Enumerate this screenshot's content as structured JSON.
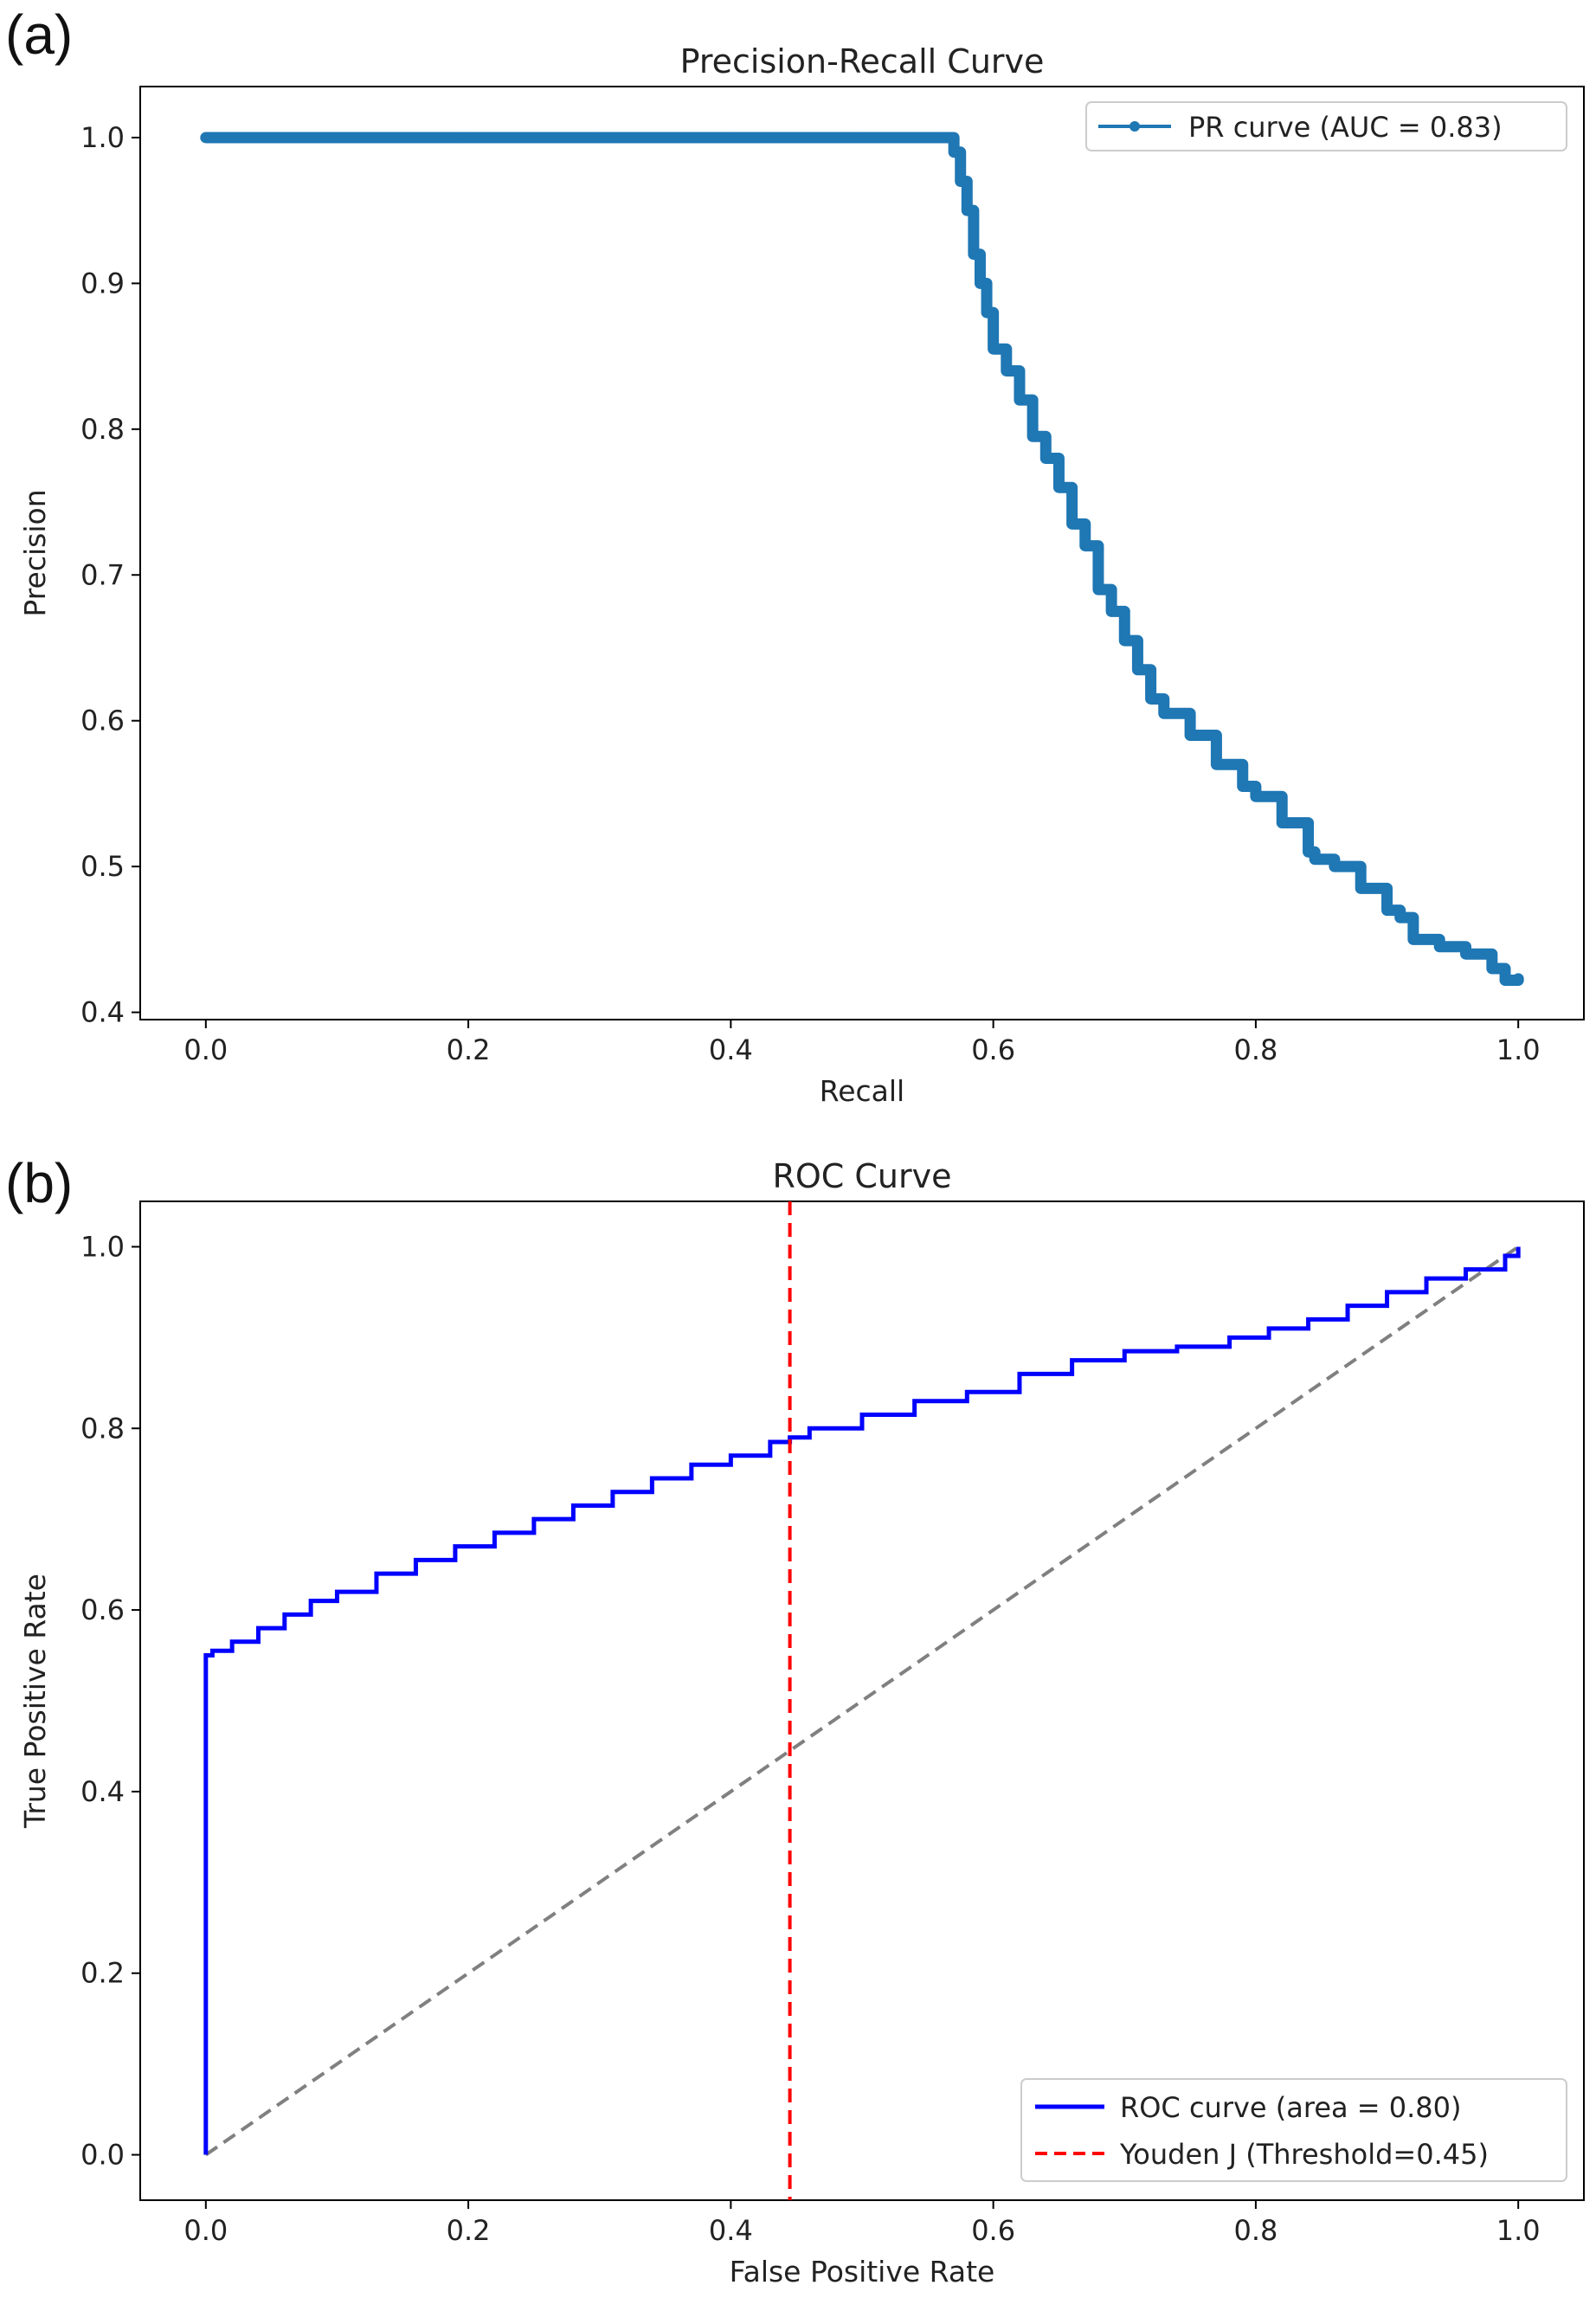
{
  "figure": {
    "panel_a_letter": "(a)",
    "panel_b_letter": "(b)"
  },
  "colors": {
    "pr_line": "#1f77b4",
    "roc_line": "#0000ff",
    "youden_line": "#ff0000",
    "diagonal": "#808080",
    "axes": "#000000"
  },
  "chart_data": [
    {
      "type": "line",
      "title": "Precision-Recall Curve",
      "xlabel": "Recall",
      "ylabel": "Precision",
      "xlim": [
        -0.05,
        1.05
      ],
      "ylim": [
        0.395,
        1.035
      ],
      "xticks": [
        0.0,
        0.2,
        0.4,
        0.6,
        0.8,
        1.0
      ],
      "xtick_labels": [
        "0.0",
        "0.2",
        "0.4",
        "0.6",
        "0.8",
        "1.0"
      ],
      "yticks": [
        0.4,
        0.5,
        0.6,
        0.7,
        0.8,
        0.9,
        1.0
      ],
      "ytick_labels": [
        "0.4",
        "0.5",
        "0.6",
        "0.7",
        "0.8",
        "0.9",
        "1.0"
      ],
      "legend_position": "top-right",
      "series": [
        {
          "name": "PR curve (AUC = 0.83)",
          "marker": "o",
          "x": [
            0.0,
            0.057,
            0.1,
            0.2,
            0.3,
            0.4,
            0.5,
            0.56,
            0.57,
            0.575,
            0.58,
            0.585,
            0.59,
            0.595,
            0.6,
            0.61,
            0.62,
            0.63,
            0.64,
            0.65,
            0.66,
            0.67,
            0.68,
            0.69,
            0.7,
            0.71,
            0.72,
            0.73,
            0.75,
            0.77,
            0.79,
            0.8,
            0.82,
            0.84,
            0.845,
            0.86,
            0.88,
            0.9,
            0.91,
            0.92,
            0.94,
            0.96,
            0.98,
            0.99,
            1.0
          ],
          "y": [
            1.0,
            1.0,
            1.0,
            1.0,
            1.0,
            1.0,
            1.0,
            1.0,
            0.99,
            0.97,
            0.95,
            0.92,
            0.9,
            0.88,
            0.855,
            0.84,
            0.82,
            0.795,
            0.78,
            0.76,
            0.735,
            0.72,
            0.69,
            0.675,
            0.655,
            0.635,
            0.615,
            0.605,
            0.59,
            0.57,
            0.555,
            0.548,
            0.53,
            0.51,
            0.505,
            0.5,
            0.485,
            0.47,
            0.465,
            0.45,
            0.445,
            0.44,
            0.43,
            0.422,
            0.423
          ]
        }
      ]
    },
    {
      "type": "line",
      "title": "ROC Curve",
      "xlabel": "False Positive Rate",
      "ylabel": "True Positive Rate",
      "xlim": [
        -0.05,
        1.05
      ],
      "ylim": [
        -0.05,
        1.05
      ],
      "xticks": [
        0.0,
        0.2,
        0.4,
        0.6,
        0.8,
        1.0
      ],
      "xtick_labels": [
        "0.0",
        "0.2",
        "0.4",
        "0.6",
        "0.8",
        "1.0"
      ],
      "yticks": [
        0.0,
        0.2,
        0.4,
        0.6,
        0.8,
        1.0
      ],
      "ytick_labels": [
        "0.0",
        "0.2",
        "0.4",
        "0.6",
        "0.8",
        "1.0"
      ],
      "legend_position": "lower-right",
      "series": [
        {
          "name": "ROC curve (area = 0.80)",
          "style": "solid",
          "x": [
            0.0,
            0.0,
            0.005,
            0.02,
            0.04,
            0.06,
            0.08,
            0.1,
            0.13,
            0.16,
            0.19,
            0.22,
            0.25,
            0.28,
            0.31,
            0.34,
            0.37,
            0.4,
            0.43,
            0.445,
            0.46,
            0.5,
            0.54,
            0.58,
            0.62,
            0.66,
            0.7,
            0.74,
            0.78,
            0.81,
            0.84,
            0.87,
            0.9,
            0.93,
            0.96,
            0.99,
            1.0
          ],
          "y": [
            0.0,
            0.55,
            0.555,
            0.565,
            0.58,
            0.595,
            0.61,
            0.62,
            0.64,
            0.655,
            0.67,
            0.685,
            0.7,
            0.715,
            0.73,
            0.745,
            0.76,
            0.77,
            0.785,
            0.79,
            0.8,
            0.815,
            0.83,
            0.84,
            0.86,
            0.875,
            0.885,
            0.89,
            0.9,
            0.91,
            0.92,
            0.935,
            0.95,
            0.965,
            0.975,
            0.99,
            1.0
          ]
        },
        {
          "name": "Youden J (Threshold=0.45)",
          "style": "dashed-vertical",
          "x_position": 0.445
        },
        {
          "name": "",
          "style": "dashed-diagonal",
          "x": [
            0.0,
            1.0
          ],
          "y": [
            0.0,
            1.0
          ]
        }
      ]
    }
  ]
}
